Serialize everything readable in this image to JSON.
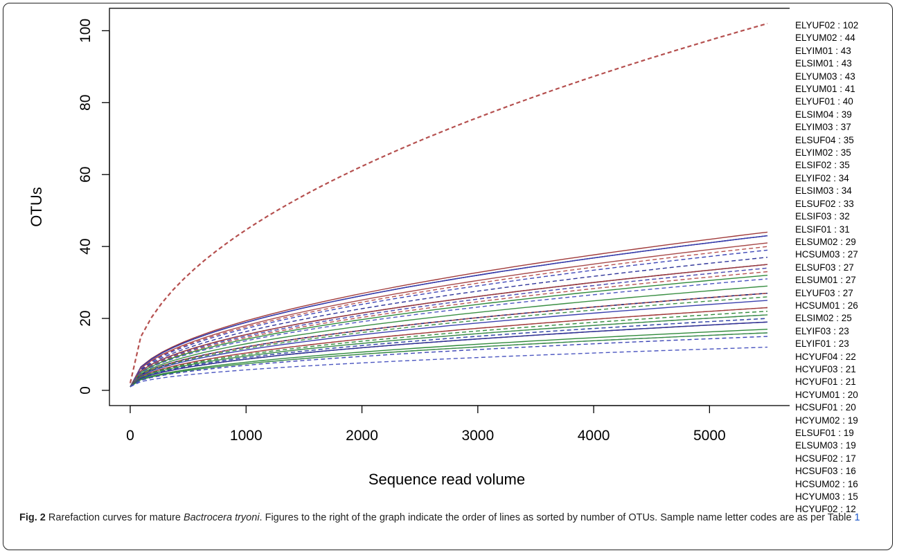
{
  "chart_data": {
    "type": "line",
    "xlabel": "Sequence read volume",
    "ylabel": "OTUs",
    "xlim": [
      0,
      5500
    ],
    "ylim": [
      0,
      102
    ],
    "x_ticks": [
      "0",
      "1000",
      "2000",
      "3000",
      "4000",
      "5000"
    ],
    "y_ticks": [
      "0",
      "20",
      "40",
      "60",
      "80",
      "100"
    ],
    "x_end": 5500,
    "grid": false,
    "legend_position": "right",
    "series": [
      {
        "name": "ELYUF02 : 102",
        "final": 102,
        "color": "#b5504f",
        "dash": true
      },
      {
        "name": "ELYUM02 : 44",
        "final": 44,
        "color": "#a03a3a",
        "dash": false
      },
      {
        "name": "ELYIM01 : 43",
        "final": 43,
        "color": "#2a2f9c",
        "dash": false
      },
      {
        "name": "ELSIM01 : 43",
        "final": 43,
        "color": "#1a237e",
        "dash": false
      },
      {
        "name": "ELYUM03 : 43",
        "final": 43,
        "color": "#3a3fae",
        "dash": false
      },
      {
        "name": "ELYUM01 : 41",
        "final": 41,
        "color": "#a84a4a",
        "dash": false
      },
      {
        "name": "ELYUF01 : 40",
        "final": 40,
        "color": "#b5504f",
        "dash": true
      },
      {
        "name": "ELSIM04 : 39",
        "final": 39,
        "color": "#3b44b6",
        "dash": true
      },
      {
        "name": "ELYIM03 : 37",
        "final": 37,
        "color": "#2d3399",
        "dash": true
      },
      {
        "name": "ELSUF04 : 35",
        "final": 35,
        "color": "#b5504f",
        "dash": true
      },
      {
        "name": "ELYIM02 : 35",
        "final": 35,
        "color": "#1a237e",
        "dash": false
      },
      {
        "name": "ELSIF02 : 35",
        "final": 35,
        "color": "#a03a3a",
        "dash": false
      },
      {
        "name": "ELYIF02 : 34",
        "final": 34,
        "color": "#b5504f",
        "dash": true
      },
      {
        "name": "ELSIM03 : 34",
        "final": 34,
        "color": "#4a55c0",
        "dash": true
      },
      {
        "name": "ELSUF02 : 33",
        "final": 33,
        "color": "#b5504f",
        "dash": true
      },
      {
        "name": "ELSIF03 : 32",
        "final": 32,
        "color": "#2f8a3a",
        "dash": false
      },
      {
        "name": "ELSIF01 : 31",
        "final": 31,
        "color": "#4a55c0",
        "dash": true
      },
      {
        "name": "ELSUM02 : 29",
        "final": 29,
        "color": "#3a8f43",
        "dash": false
      },
      {
        "name": "HCSUM03 : 27",
        "final": 27,
        "color": "#2f8a3a",
        "dash": false
      },
      {
        "name": "ELSUF03 : 27",
        "final": 27,
        "color": "#a84a4a",
        "dash": false
      },
      {
        "name": "ELSUM01 : 27",
        "final": 27,
        "color": "#1a237e",
        "dash": false
      },
      {
        "name": "ELYUF03 : 27",
        "final": 27,
        "color": "#b5504f",
        "dash": true
      },
      {
        "name": "HCSUM01 : 26",
        "final": 26,
        "color": "#3a8f43",
        "dash": true
      },
      {
        "name": "ELSIM02 : 25",
        "final": 25,
        "color": "#3a3fae",
        "dash": false
      },
      {
        "name": "ELYIF03 : 23",
        "final": 23,
        "color": "#b5504f",
        "dash": true
      },
      {
        "name": "ELYIF01 : 23",
        "final": 23,
        "color": "#a03a3a",
        "dash": false
      },
      {
        "name": "HCYUF04 : 22",
        "final": 22,
        "color": "#2f8a3a",
        "dash": true
      },
      {
        "name": "HCYUF03 : 21",
        "final": 21,
        "color": "#4a55c0",
        "dash": true
      },
      {
        "name": "HCYUF01 : 21",
        "final": 21,
        "color": "#3a8f43",
        "dash": false
      },
      {
        "name": "HCYUM01 : 20",
        "final": 20,
        "color": "#2f8a3a",
        "dash": true
      },
      {
        "name": "HCSUF01 : 20",
        "final": 20,
        "color": "#3b44b6",
        "dash": true
      },
      {
        "name": "HCYUM02 : 19",
        "final": 19,
        "color": "#1a237e",
        "dash": false
      },
      {
        "name": "ELSUF01 : 19",
        "final": 19,
        "color": "#a84a4a",
        "dash": true
      },
      {
        "name": "ELSUM03 : 19",
        "final": 19,
        "color": "#2d3399",
        "dash": false
      },
      {
        "name": "HCSUF02 : 17",
        "final": 17,
        "color": "#2f8a3a",
        "dash": false
      },
      {
        "name": "HCSUF03 : 16",
        "final": 16,
        "color": "#4a55c0",
        "dash": true
      },
      {
        "name": "HCSUM02 : 16",
        "final": 16,
        "color": "#3a8f43",
        "dash": false
      },
      {
        "name": "HCYUM03 : 15",
        "final": 15,
        "color": "#3b44b6",
        "dash": true
      },
      {
        "name": "HCYUF02 : 12",
        "final": 12,
        "color": "#4a55c0",
        "dash": true
      }
    ]
  },
  "caption": {
    "label": "Fig. 2",
    "text_before": " Rarefaction curves for mature ",
    "species": "Bactrocera tryoni",
    "text_after": ". Figures to the right of the graph indicate the order of lines as sorted by number of OTUs. Sample name letter codes are as per Table ",
    "table_ref": "1"
  }
}
